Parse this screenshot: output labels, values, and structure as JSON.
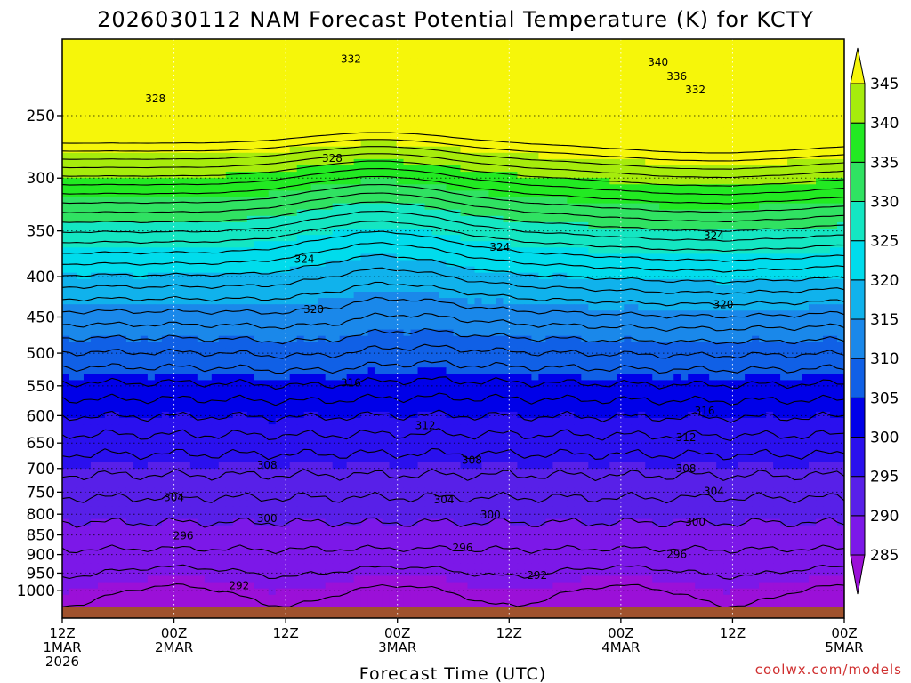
{
  "chart_data": {
    "type": "heatmap",
    "title": "2026030112 NAM Forecast Potential Temperature (K) for KCTY",
    "xlabel": "Forecast Time (UTC)",
    "ylabel": "",
    "credit": "coolwx.com/models",
    "y_scale": "log-pressure",
    "y_range": [
      200,
      1050
    ],
    "y_ticks": [
      250,
      300,
      350,
      400,
      450,
      500,
      550,
      600,
      650,
      700,
      750,
      800,
      850,
      900,
      950,
      1000
    ],
    "x_ticks": [
      {
        "time": "12Z",
        "date": "1MAR",
        "year": "2026"
      },
      {
        "time": "00Z",
        "date": "2MAR",
        "year": ""
      },
      {
        "time": "12Z",
        "date": "",
        "year": ""
      },
      {
        "time": "00Z",
        "date": "3MAR",
        "year": ""
      },
      {
        "time": "12Z",
        "date": "",
        "year": ""
      },
      {
        "time": "00Z",
        "date": "4MAR",
        "year": ""
      },
      {
        "time": "12Z",
        "date": "",
        "year": ""
      },
      {
        "time": "00Z",
        "date": "5MAR",
        "year": ""
      }
    ],
    "x_range_hours": [
      0,
      84
    ],
    "colorbar": {
      "unit": "K",
      "labels": [
        285,
        290,
        295,
        300,
        305,
        310,
        315,
        320,
        325,
        330,
        335,
        340,
        345
      ],
      "bins": [
        {
          "min": 280,
          "max": 285,
          "color": "#9b10d8"
        },
        {
          "min": 285,
          "max": 290,
          "color": "#7c18e8"
        },
        {
          "min": 290,
          "max": 295,
          "color": "#5820e8"
        },
        {
          "min": 295,
          "max": 300,
          "color": "#2a10ee"
        },
        {
          "min": 300,
          "max": 305,
          "color": "#0000e8"
        },
        {
          "min": 305,
          "max": 310,
          "color": "#1060e6"
        },
        {
          "min": 310,
          "max": 315,
          "color": "#1a88ea"
        },
        {
          "min": 315,
          "max": 320,
          "color": "#10b2ec"
        },
        {
          "min": 320,
          "max": 325,
          "color": "#00dcec"
        },
        {
          "min": 325,
          "max": 330,
          "color": "#14e6c2"
        },
        {
          "min": 330,
          "max": 335,
          "color": "#30e262"
        },
        {
          "min": 335,
          "max": 340,
          "color": "#22ea22"
        },
        {
          "min": 340,
          "max": 345,
          "color": "#a6ec0c"
        },
        {
          "min": 345,
          "max": 350,
          "color": "#f6f60a"
        }
      ]
    },
    "contours": {
      "interval": 2,
      "labeled": [
        {
          "value": 332,
          "x_hour": 31,
          "p": 212
        },
        {
          "value": 340,
          "x_hour": 64,
          "p": 214
        },
        {
          "value": 336,
          "x_hour": 66,
          "p": 223
        },
        {
          "value": 332,
          "x_hour": 68,
          "p": 232
        },
        {
          "value": 328,
          "x_hour": 10,
          "p": 238
        },
        {
          "value": 328,
          "x_hour": 29,
          "p": 283
        },
        {
          "value": 324,
          "x_hour": 26,
          "p": 380
        },
        {
          "value": 324,
          "x_hour": 47,
          "p": 367
        },
        {
          "value": 324,
          "x_hour": 70,
          "p": 355
        },
        {
          "value": 320,
          "x_hour": 27,
          "p": 440
        },
        {
          "value": 320,
          "x_hour": 71,
          "p": 434
        },
        {
          "value": 316,
          "x_hour": 31,
          "p": 545
        },
        {
          "value": 316,
          "x_hour": 69,
          "p": 592
        },
        {
          "value": 312,
          "x_hour": 39,
          "p": 618
        },
        {
          "value": 312,
          "x_hour": 67,
          "p": 640
        },
        {
          "value": 308,
          "x_hour": 22,
          "p": 693
        },
        {
          "value": 308,
          "x_hour": 44,
          "p": 683
        },
        {
          "value": 308,
          "x_hour": 67,
          "p": 700
        },
        {
          "value": 304,
          "x_hour": 12,
          "p": 762
        },
        {
          "value": 304,
          "x_hour": 41,
          "p": 767
        },
        {
          "value": 304,
          "x_hour": 70,
          "p": 748
        },
        {
          "value": 300,
          "x_hour": 22,
          "p": 810
        },
        {
          "value": 300,
          "x_hour": 46,
          "p": 802
        },
        {
          "value": 300,
          "x_hour": 68,
          "p": 818
        },
        {
          "value": 296,
          "x_hour": 13,
          "p": 852
        },
        {
          "value": 296,
          "x_hour": 43,
          "p": 882
        },
        {
          "value": 296,
          "x_hour": 66,
          "p": 900
        },
        {
          "value": 292,
          "x_hour": 19,
          "p": 985
        },
        {
          "value": 292,
          "x_hour": 51,
          "p": 956
        }
      ]
    },
    "surface_color": "#a0522d",
    "gridlines": "dotted"
  }
}
